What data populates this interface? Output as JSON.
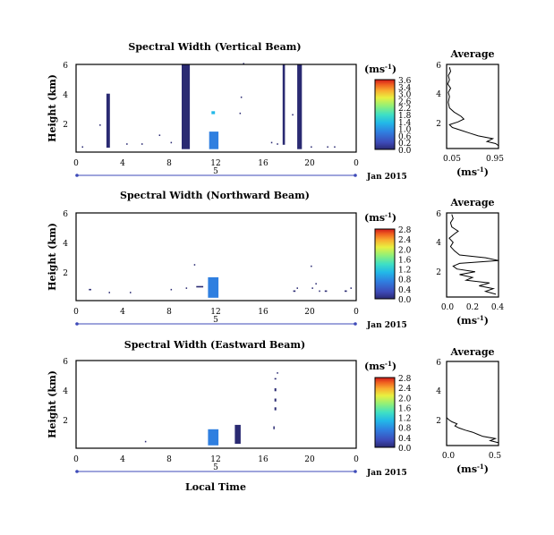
{
  "common": {
    "ylabel": "Height (km)",
    "xlabel": "Local Time",
    "date_label": "Jan 2015",
    "day_marker": "5",
    "cbar_unit": "(ms",
    "cbar_unit_sup": "-1",
    "cbar_unit_close": ")",
    "avg_title": "Average",
    "avg_xlabel": "(ms",
    "avg_xlabel_sup": "-1",
    "avg_xlabel_close": ")",
    "x_ticks": [
      "0",
      "4",
      "8",
      "12",
      "16",
      "20",
      "0"
    ],
    "y_ticks": [
      "6",
      "4",
      "2"
    ],
    "colorscale": [
      "#2a2a72",
      "#3d4ab8",
      "#2f7fe0",
      "#22b8e8",
      "#3fe0c4",
      "#8ff07a",
      "#e8f040",
      "#f8b030",
      "#f06020",
      "#d01a1a"
    ]
  },
  "chart_data": [
    {
      "type": "heatmap",
      "title": "Spectral Width (Vertical Beam)",
      "xlabel": "Local Time",
      "ylabel": "Height (km)",
      "xlim": [
        0,
        24
      ],
      "ylim": [
        0,
        6
      ],
      "cbar_ticks": [
        "3.6",
        "3.4",
        "3.0",
        "2.6",
        "2.2",
        "1.8",
        "1.4",
        "1.0",
        "0.6",
        "0.2",
        "0.0"
      ],
      "cells": [
        {
          "x0": 9.05,
          "x1": 9.75,
          "y0": 0.2,
          "y1": 6.0,
          "v": 0.1
        },
        {
          "x0": 18.95,
          "x1": 19.35,
          "y0": 0.2,
          "y1": 6.0,
          "v": 0.1
        },
        {
          "x0": 17.7,
          "x1": 17.9,
          "y0": 0.5,
          "y1": 6.0,
          "v": 0.1
        },
        {
          "x0": 2.6,
          "x1": 2.9,
          "y0": 0.3,
          "y1": 4.0,
          "v": 0.15
        },
        {
          "x0": 11.4,
          "x1": 12.2,
          "y0": 0.2,
          "y1": 1.4,
          "v": 0.8
        },
        {
          "x0": 11.6,
          "x1": 11.9,
          "y0": 2.6,
          "y1": 2.8,
          "v": 1.3
        },
        {
          "x0": 2.0,
          "x1": 2.1,
          "y0": 1.8,
          "y1": 1.9,
          "v": 0.1
        },
        {
          "x0": 0.5,
          "x1": 0.6,
          "y0": 0.3,
          "y1": 0.4,
          "v": 0.1
        },
        {
          "x0": 4.3,
          "x1": 4.4,
          "y0": 0.5,
          "y1": 0.6,
          "v": 0.1
        },
        {
          "x0": 5.6,
          "x1": 5.7,
          "y0": 0.5,
          "y1": 0.6,
          "v": 0.1
        },
        {
          "x0": 7.1,
          "x1": 7.2,
          "y0": 1.1,
          "y1": 1.2,
          "v": 0.1
        },
        {
          "x0": 8.1,
          "x1": 8.2,
          "y0": 0.6,
          "y1": 0.7,
          "v": 0.1
        },
        {
          "x0": 14.0,
          "x1": 14.1,
          "y0": 2.6,
          "y1": 2.7,
          "v": 0.1
        },
        {
          "x0": 14.1,
          "x1": 14.2,
          "y0": 3.7,
          "y1": 3.8,
          "v": 0.1
        },
        {
          "x0": 14.3,
          "x1": 14.4,
          "y0": 6.0,
          "y1": 6.1,
          "v": 0.1
        },
        {
          "x0": 16.7,
          "x1": 16.8,
          "y0": 0.6,
          "y1": 0.7,
          "v": 0.1
        },
        {
          "x0": 17.2,
          "x1": 17.3,
          "y0": 0.5,
          "y1": 0.6,
          "v": 0.1
        },
        {
          "x0": 18.5,
          "x1": 18.6,
          "y0": 2.5,
          "y1": 2.6,
          "v": 0.1
        },
        {
          "x0": 20.1,
          "x1": 20.2,
          "y0": 0.3,
          "y1": 0.4,
          "v": 0.1
        },
        {
          "x0": 21.5,
          "x1": 21.6,
          "y0": 0.3,
          "y1": 0.4,
          "v": 0.1
        },
        {
          "x0": 22.1,
          "x1": 22.2,
          "y0": 0.3,
          "y1": 0.4,
          "v": 0.1
        }
      ],
      "average": {
        "xlim": [
          0.05,
          0.95
        ],
        "x_ticks": [
          "0.05",
          "0.95"
        ],
        "y_ticks": [
          "6",
          "4",
          "2"
        ],
        "profile": [
          [
            0.95,
            0.2
          ],
          [
            0.9,
            0.35
          ],
          [
            0.75,
            0.5
          ],
          [
            0.85,
            0.7
          ],
          [
            0.6,
            0.9
          ],
          [
            0.45,
            1.1
          ],
          [
            0.3,
            1.3
          ],
          [
            0.15,
            1.5
          ],
          [
            0.1,
            1.7
          ],
          [
            0.25,
            1.9
          ],
          [
            0.35,
            2.1
          ],
          [
            0.3,
            2.3
          ],
          [
            0.18,
            2.6
          ],
          [
            0.1,
            2.9
          ],
          [
            0.08,
            3.3
          ],
          [
            0.1,
            3.7
          ],
          [
            0.08,
            4.0
          ],
          [
            0.12,
            4.3
          ],
          [
            0.07,
            4.6
          ],
          [
            0.1,
            4.9
          ],
          [
            0.08,
            5.2
          ],
          [
            0.12,
            5.5
          ],
          [
            0.1,
            5.8
          ]
        ]
      }
    },
    {
      "type": "heatmap",
      "title": "Spectral Width (Northward Beam)",
      "xlabel": "Local Time",
      "ylabel": "Height (km)",
      "xlim": [
        0,
        24
      ],
      "ylim": [
        0,
        6
      ],
      "cbar_ticks": [
        "2.8",
        "2.4",
        "2.0",
        "1.6",
        "1.2",
        "0.8",
        "0.4",
        "0.0"
      ],
      "cells": [
        {
          "x0": 11.3,
          "x1": 12.2,
          "y0": 0.2,
          "y1": 1.6,
          "v": 0.7
        },
        {
          "x0": 10.1,
          "x1": 10.2,
          "y0": 2.4,
          "y1": 2.5,
          "v": 0.1
        },
        {
          "x0": 1.1,
          "x1": 1.3,
          "y0": 0.7,
          "y1": 0.8,
          "v": 0.1
        },
        {
          "x0": 2.8,
          "x1": 2.9,
          "y0": 0.5,
          "y1": 0.6,
          "v": 0.1
        },
        {
          "x0": 4.6,
          "x1": 4.7,
          "y0": 0.5,
          "y1": 0.6,
          "v": 0.1
        },
        {
          "x0": 8.1,
          "x1": 8.2,
          "y0": 0.7,
          "y1": 0.8,
          "v": 0.1
        },
        {
          "x0": 9.4,
          "x1": 9.5,
          "y0": 0.8,
          "y1": 0.9,
          "v": 0.1
        },
        {
          "x0": 10.3,
          "x1": 10.9,
          "y0": 0.9,
          "y1": 1.0,
          "v": 0.1
        },
        {
          "x0": 18.6,
          "x1": 18.8,
          "y0": 0.6,
          "y1": 0.7,
          "v": 0.1
        },
        {
          "x0": 18.9,
          "x1": 19.0,
          "y0": 0.8,
          "y1": 0.9,
          "v": 0.1
        },
        {
          "x0": 20.2,
          "x1": 20.3,
          "y0": 0.8,
          "y1": 0.9,
          "v": 0.1
        },
        {
          "x0": 20.5,
          "x1": 20.6,
          "y0": 1.1,
          "y1": 1.2,
          "v": 0.1
        },
        {
          "x0": 20.1,
          "x1": 20.2,
          "y0": 2.3,
          "y1": 2.4,
          "v": 0.1
        },
        {
          "x0": 20.8,
          "x1": 20.9,
          "y0": 0.6,
          "y1": 0.7,
          "v": 0.1
        },
        {
          "x0": 21.3,
          "x1": 21.5,
          "y0": 0.6,
          "y1": 0.7,
          "v": 0.1
        },
        {
          "x0": 23.0,
          "x1": 23.2,
          "y0": 0.6,
          "y1": 0.7,
          "v": 0.1
        },
        {
          "x0": 23.5,
          "x1": 23.6,
          "y0": 0.8,
          "y1": 0.9,
          "v": 0.1
        }
      ],
      "average": {
        "xlim": [
          0.0,
          0.4
        ],
        "x_ticks": [
          "0.0",
          "0.2",
          "0.4"
        ],
        "y_ticks": [
          "6",
          "4",
          "2"
        ],
        "profile": [
          [
            0.38,
            0.2
          ],
          [
            0.3,
            0.4
          ],
          [
            0.36,
            0.6
          ],
          [
            0.25,
            0.8
          ],
          [
            0.33,
            1.0
          ],
          [
            0.15,
            1.2
          ],
          [
            0.2,
            1.4
          ],
          [
            0.1,
            1.6
          ],
          [
            0.22,
            1.8
          ],
          [
            0.08,
            2.0
          ],
          [
            0.05,
            2.2
          ],
          [
            0.1,
            2.4
          ],
          [
            0.4,
            2.6
          ],
          [
            0.3,
            2.8
          ],
          [
            0.1,
            3.0
          ],
          [
            0.06,
            3.3
          ],
          [
            0.03,
            3.6
          ],
          [
            0.05,
            3.9
          ],
          [
            0.02,
            4.2
          ],
          [
            0.06,
            4.5
          ],
          [
            0.09,
            4.7
          ],
          [
            0.04,
            5.0
          ],
          [
            0.03,
            5.3
          ],
          [
            0.05,
            5.6
          ],
          [
            0.04,
            5.9
          ]
        ]
      }
    },
    {
      "type": "heatmap",
      "title": "Spectral Width (Eastward Beam)",
      "xlabel": "Local Time",
      "ylabel": "Height (km)",
      "xlim": [
        0,
        24
      ],
      "ylim": [
        0,
        6
      ],
      "cbar_ticks": [
        "2.8",
        "2.4",
        "2.0",
        "1.6",
        "1.2",
        "0.8",
        "0.4",
        "0.0"
      ],
      "cells": [
        {
          "x0": 11.3,
          "x1": 12.2,
          "y0": 0.2,
          "y1": 1.3,
          "v": 0.8
        },
        {
          "x0": 13.6,
          "x1": 14.1,
          "y0": 0.3,
          "y1": 1.6,
          "v": 0.15
        },
        {
          "x0": 16.9,
          "x1": 17.0,
          "y0": 1.3,
          "y1": 1.5,
          "v": 0.1
        },
        {
          "x0": 17.0,
          "x1": 17.15,
          "y0": 2.6,
          "y1": 2.8,
          "v": 0.1
        },
        {
          "x0": 17.0,
          "x1": 17.15,
          "y0": 3.2,
          "y1": 3.4,
          "v": 0.1
        },
        {
          "x0": 17.0,
          "x1": 17.15,
          "y0": 3.9,
          "y1": 4.1,
          "v": 0.1
        },
        {
          "x0": 17.0,
          "x1": 17.15,
          "y0": 4.7,
          "y1": 4.8,
          "v": 0.1
        },
        {
          "x0": 17.2,
          "x1": 17.3,
          "y0": 5.1,
          "y1": 5.2,
          "v": 0.1
        },
        {
          "x0": 5.9,
          "x1": 6.0,
          "y0": 0.4,
          "y1": 0.5,
          "v": 0.1
        }
      ],
      "average": {
        "xlim": [
          0.0,
          0.5
        ],
        "x_ticks": [
          "0.0",
          "0.5"
        ],
        "y_ticks": [
          "6",
          "4",
          "2"
        ],
        "profile": [
          [
            0.5,
            0.2
          ],
          [
            0.42,
            0.35
          ],
          [
            0.47,
            0.5
          ],
          [
            0.35,
            0.65
          ],
          [
            0.3,
            0.8
          ],
          [
            0.25,
            0.95
          ],
          [
            0.18,
            1.1
          ],
          [
            0.12,
            1.25
          ],
          [
            0.08,
            1.4
          ],
          [
            0.1,
            1.55
          ],
          [
            0.05,
            1.7
          ],
          [
            0.02,
            1.85
          ],
          [
            0.0,
            2.0
          ]
        ]
      }
    }
  ]
}
